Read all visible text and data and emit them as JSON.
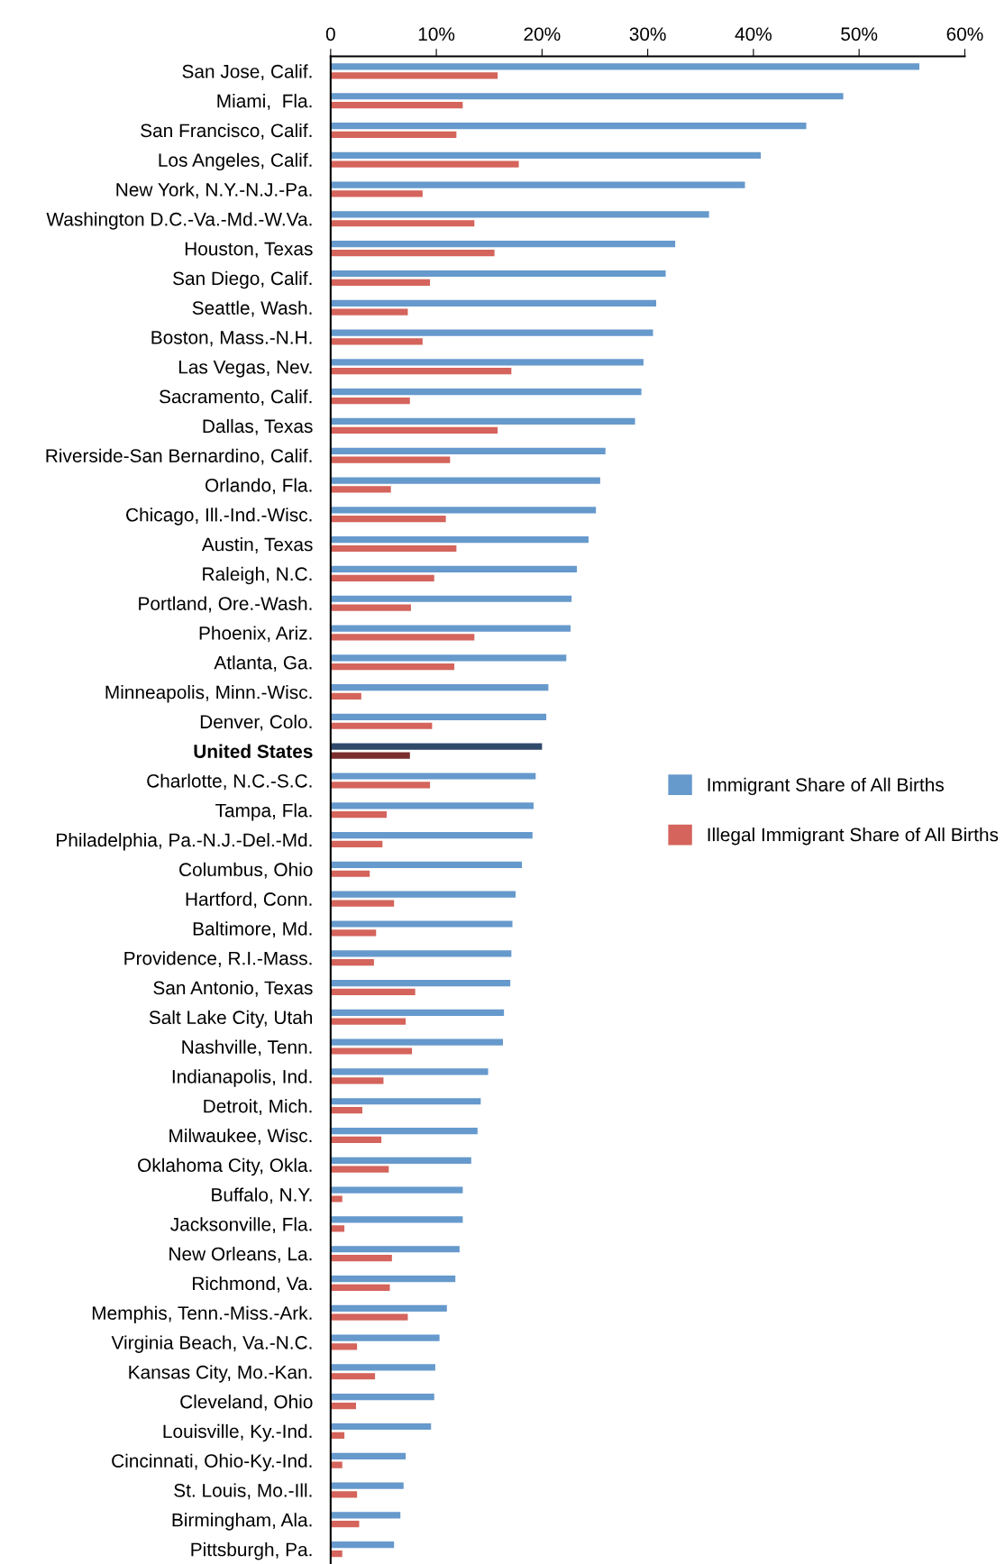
{
  "chart_data": {
    "type": "bar",
    "orientation": "horizontal",
    "categories": [
      "San Jose, Calif.",
      "Miami,  Fla.",
      "San Francisco, Calif.",
      "Los Angeles, Calif.",
      "New York, N.Y.-N.J.-Pa.",
      "Washington D.C.-Va.-Md.-W.Va.",
      "Houston, Texas",
      "San Diego, Calif.",
      "Seattle, Wash.",
      "Boston, Mass.-N.H.",
      "Las Vegas, Nev.",
      "Sacramento, Calif.",
      "Dallas, Texas",
      "Riverside-San Bernardino, Calif.",
      "Orlando, Fla.",
      "Chicago, Ill.-Ind.-Wisc.",
      "Austin, Texas",
      "Raleigh, N.C.",
      "Portland, Ore.-Wash.",
      "Phoenix, Ariz.",
      "Atlanta, Ga.",
      "Minneapolis, Minn.-Wisc.",
      "Denver, Colo.",
      "United States",
      "Charlotte, N.C.-S.C.",
      "Tampa, Fla.",
      "Philadelphia, Pa.-N.J.-Del.-Md.",
      "Columbus, Ohio",
      "Hartford, Conn.",
      "Baltimore, Md.",
      "Providence, R.I.-Mass.",
      "San Antonio, Texas",
      "Salt Lake City, Utah",
      "Nashville, Tenn.",
      "Indianapolis, Ind.",
      "Detroit, Mich.",
      "Milwaukee, Wisc.",
      "Oklahoma City, Okla.",
      "Buffalo, N.Y.",
      "Jacksonville, Fla.",
      "New Orleans, La.",
      "Richmond, Va.",
      "Memphis, Tenn.-Miss.-Ark.",
      "Virginia Beach, Va.-N.C.",
      "Kansas City, Mo.-Kan.",
      "Cleveland, Ohio",
      "Louisville, Ky.-Ind.",
      "Cincinnati, Ohio-Ky.-Ind.",
      "St. Louis, Mo.-Ill.",
      "Birmingham, Ala.",
      "Pittsburgh, Pa."
    ],
    "series": [
      {
        "name": "Immigrant Share of All Births",
        "color": "#6699cc",
        "values": [
          55.7,
          48.5,
          45.0,
          40.7,
          39.2,
          35.8,
          32.6,
          31.7,
          30.8,
          30.5,
          29.6,
          29.4,
          28.8,
          26.0,
          25.5,
          25.1,
          24.4,
          23.3,
          22.8,
          22.7,
          22.3,
          20.6,
          20.4,
          20.0,
          19.4,
          19.2,
          19.1,
          18.1,
          17.5,
          17.2,
          17.1,
          17.0,
          16.4,
          16.3,
          14.9,
          14.2,
          13.9,
          13.3,
          12.5,
          12.5,
          12.2,
          11.8,
          11.0,
          10.3,
          9.9,
          9.8,
          9.5,
          7.1,
          6.9,
          6.6,
          6.0
        ],
        "colors": [
          "#6699cc",
          "#6699cc",
          "#6699cc",
          "#6699cc",
          "#6699cc",
          "#6699cc",
          "#6699cc",
          "#6699cc",
          "#6699cc",
          "#6699cc",
          "#6699cc",
          "#6699cc",
          "#6699cc",
          "#6699cc",
          "#6699cc",
          "#6699cc",
          "#6699cc",
          "#6699cc",
          "#6699cc",
          "#6699cc",
          "#6699cc",
          "#6699cc",
          "#6699cc",
          "#2f4a6b",
          "#6699cc",
          "#6699cc",
          "#6699cc",
          "#6699cc",
          "#6699cc",
          "#6699cc",
          "#6699cc",
          "#6699cc",
          "#6699cc",
          "#6699cc",
          "#6699cc",
          "#6699cc",
          "#6699cc",
          "#6699cc",
          "#6699cc",
          "#6699cc",
          "#6699cc",
          "#6699cc",
          "#6699cc",
          "#6699cc",
          "#6699cc",
          "#6699cc",
          "#6699cc",
          "#6699cc",
          "#6699cc",
          "#6699cc",
          "#6699cc"
        ]
      },
      {
        "name": "Illegal Immigrant Share of All Births",
        "color": "#d4645c",
        "values": [
          15.8,
          12.5,
          11.9,
          17.8,
          8.7,
          13.6,
          15.5,
          9.4,
          7.3,
          8.7,
          17.1,
          7.5,
          15.8,
          11.3,
          5.7,
          10.9,
          11.9,
          9.8,
          7.6,
          13.6,
          11.7,
          2.9,
          9.6,
          7.5,
          9.4,
          5.3,
          4.9,
          3.7,
          6.0,
          4.3,
          4.1,
          8.0,
          7.1,
          7.7,
          5.0,
          3.0,
          4.8,
          5.5,
          1.1,
          1.3,
          5.8,
          5.6,
          7.3,
          2.5,
          4.2,
          2.4,
          1.3,
          1.1,
          2.5,
          2.7,
          1.1
        ],
        "colors": [
          "#d4645c",
          "#d4645c",
          "#d4645c",
          "#d4645c",
          "#d4645c",
          "#d4645c",
          "#d4645c",
          "#d4645c",
          "#d4645c",
          "#d4645c",
          "#d4645c",
          "#d4645c",
          "#d4645c",
          "#d4645c",
          "#d4645c",
          "#d4645c",
          "#d4645c",
          "#d4645c",
          "#d4645c",
          "#d4645c",
          "#d4645c",
          "#d4645c",
          "#d4645c",
          "#7a2e2e",
          "#d4645c",
          "#d4645c",
          "#d4645c",
          "#d4645c",
          "#d4645c",
          "#d4645c",
          "#d4645c",
          "#d4645c",
          "#d4645c",
          "#d4645c",
          "#d4645c",
          "#d4645c",
          "#d4645c",
          "#d4645c",
          "#d4645c",
          "#d4645c",
          "#d4645c",
          "#d4645c",
          "#d4645c",
          "#d4645c",
          "#d4645c",
          "#d4645c",
          "#d4645c",
          "#d4645c",
          "#d4645c",
          "#d4645c",
          "#d4645c"
        ]
      }
    ],
    "xlim": [
      0,
      60
    ],
    "xticks": [
      0,
      {
        "value": 10,
        "label": "10%"
      },
      {
        "value": 20,
        "label": "20%"
      },
      {
        "value": 30,
        "label": "30%"
      },
      {
        "value": 40,
        "label": "40%"
      },
      {
        "value": 50,
        "label": "50%"
      },
      {
        "value": 60,
        "label": "60%"
      }
    ],
    "grid": false,
    "legend": "right"
  }
}
